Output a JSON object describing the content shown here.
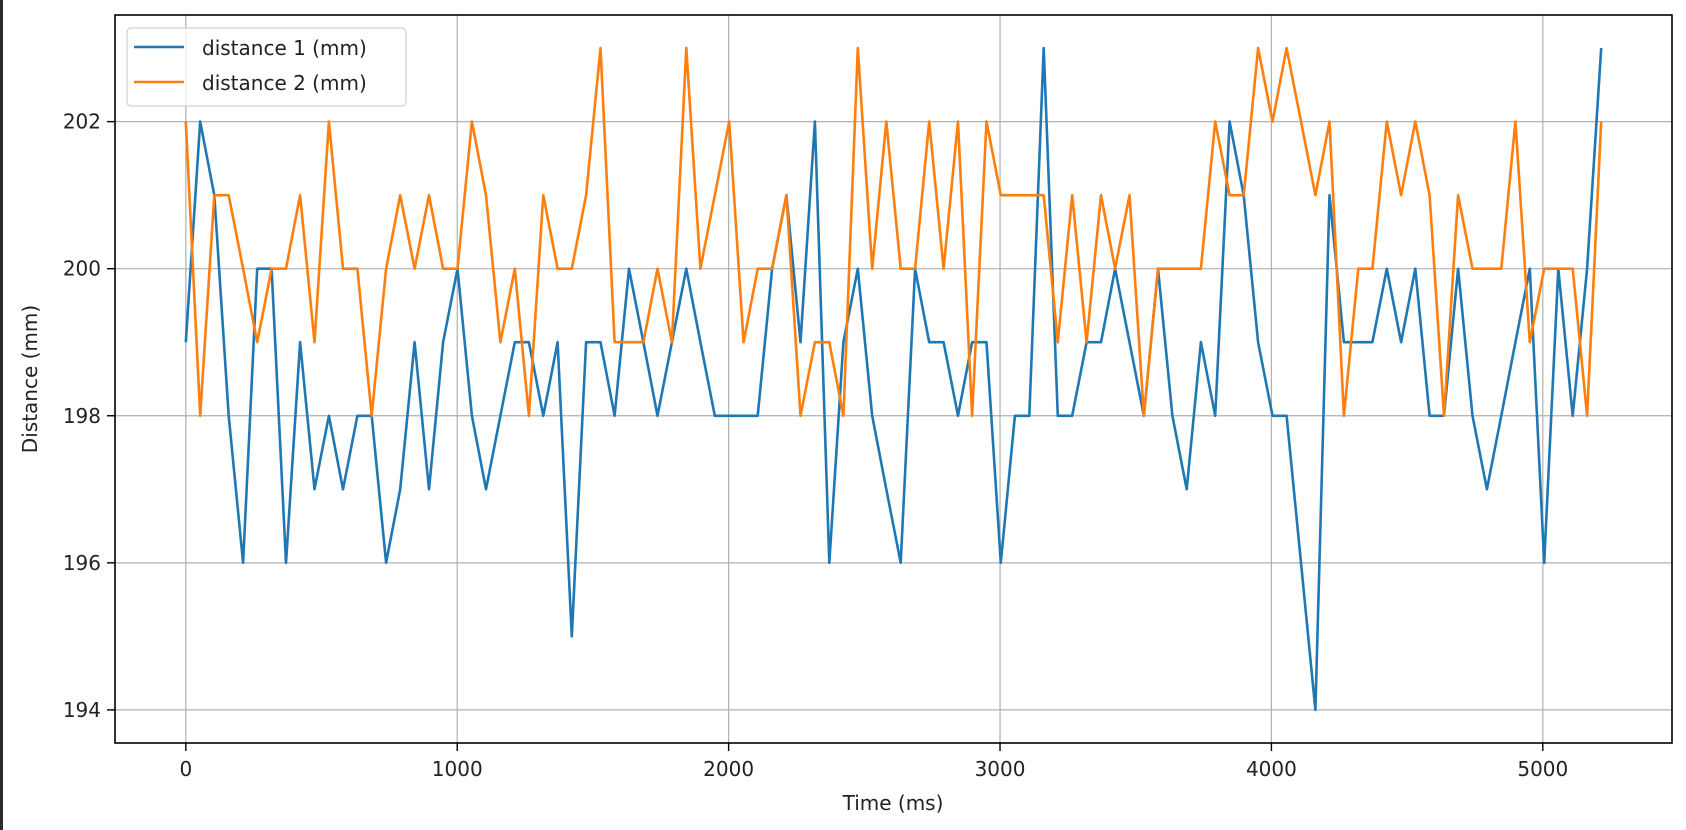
{
  "chart_data": {
    "type": "line",
    "title": "",
    "xlabel": "Time (ms)",
    "ylabel": "Distance (mm)",
    "xlim": [
      -261,
      5476
    ],
    "ylim": [
      193.55,
      203.45
    ],
    "xticks": [
      0,
      1000,
      2000,
      3000,
      4000,
      5000
    ],
    "yticks": [
      194,
      196,
      198,
      200,
      202
    ],
    "grid": true,
    "legend_position": "top-left",
    "x": [
      0,
      53,
      105,
      158,
      211,
      263,
      316,
      369,
      421,
      474,
      527,
      579,
      632,
      685,
      738,
      790,
      843,
      896,
      948,
      1001,
      1054,
      1106,
      1159,
      1212,
      1264,
      1317,
      1370,
      1422,
      1475,
      1528,
      1580,
      1633,
      1686,
      1738,
      1791,
      1844,
      1896,
      1949,
      2002,
      2055,
      2107,
      2160,
      2213,
      2265,
      2318,
      2371,
      2423,
      2476,
      2529,
      2581,
      2634,
      2687,
      2739,
      2792,
      2845,
      2897,
      2950,
      3003,
      3055,
      3108,
      3161,
      3213,
      3266,
      3319,
      3372,
      3424,
      3477,
      3530,
      3582,
      3635,
      3688,
      3740,
      3793,
      3846,
      3898,
      3951,
      4004,
      4056,
      4109,
      4162,
      4214,
      4267,
      4320,
      4372,
      4425,
      4478,
      4530,
      4583,
      4636,
      4688,
      4741,
      4794,
      4847,
      4899,
      4952,
      5005,
      5057,
      5110,
      5163,
      5215
    ],
    "series": [
      {
        "name": "distance 1 (mm)",
        "color": "#1f77b4",
        "values": [
          199,
          202,
          201,
          198,
          196,
          200,
          200,
          196,
          199,
          197,
          198,
          197,
          198,
          198,
          196,
          197,
          199,
          197,
          199,
          200,
          198,
          197,
          198,
          199,
          199,
          198,
          199,
          195,
          199,
          199,
          198,
          200,
          199,
          198,
          199,
          200,
          199,
          198,
          198,
          198,
          198,
          200,
          201,
          199,
          202,
          196,
          199,
          200,
          198,
          197,
          196,
          200,
          199,
          199,
          198,
          199,
          199,
          196,
          198,
          198,
          203,
          198,
          198,
          199,
          199,
          200,
          199,
          198,
          200,
          198,
          197,
          199,
          198,
          202,
          201,
          199,
          198,
          198,
          196,
          194,
          201,
          199,
          199,
          199,
          200,
          199,
          200,
          198,
          198,
          200,
          198,
          197,
          198,
          199,
          200,
          196,
          200,
          198,
          200,
          203
        ]
      },
      {
        "name": "distance 2 (mm)",
        "color": "#ff7f0e",
        "values": [
          202,
          198,
          201,
          201,
          200,
          199,
          200,
          200,
          201,
          199,
          202,
          200,
          200,
          198,
          200,
          201,
          200,
          201,
          200,
          200,
          202,
          201,
          199,
          200,
          198,
          201,
          200,
          200,
          201,
          203,
          199,
          199,
          199,
          200,
          199,
          203,
          200,
          201,
          202,
          199,
          200,
          200,
          201,
          198,
          199,
          199,
          198,
          203,
          200,
          202,
          200,
          200,
          202,
          200,
          202,
          198,
          202,
          201,
          201,
          201,
          201,
          199,
          201,
          199,
          201,
          200,
          201,
          198,
          200,
          200,
          200,
          200,
          202,
          201,
          201,
          203,
          202,
          203,
          202,
          201,
          202,
          198,
          200,
          200,
          202,
          201,
          202,
          201,
          198,
          201,
          200,
          200,
          200,
          202,
          199,
          200,
          200,
          200,
          198,
          202
        ]
      }
    ]
  }
}
